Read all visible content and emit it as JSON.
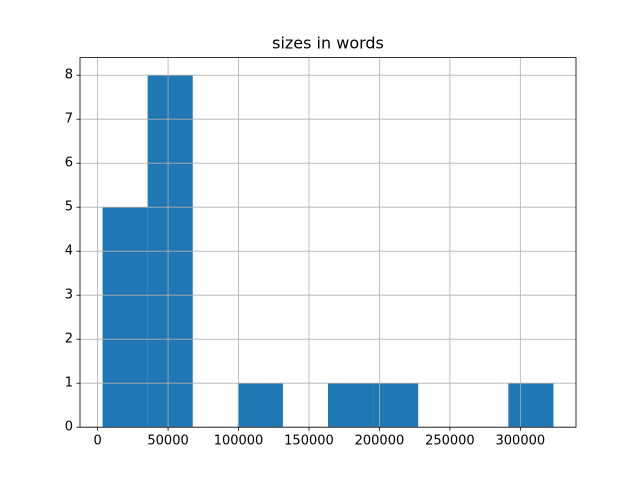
{
  "chart_data": {
    "type": "histogram",
    "title": "sizes in words",
    "bins": [
      3500,
      35500,
      67500,
      99500,
      131500,
      163500,
      195500,
      227500,
      259500,
      291500,
      323500
    ],
    "values": [
      5,
      8,
      0,
      1,
      0,
      1,
      1,
      0,
      0,
      1
    ],
    "color": "#1f77b4",
    "xlim": [
      -12500,
      339500
    ],
    "xticks": [
      0,
      50000,
      100000,
      150000,
      200000,
      250000,
      300000
    ],
    "ylim": [
      0,
      8.4
    ],
    "yticks": [
      0,
      1,
      2,
      3,
      4,
      5,
      6,
      7,
      8
    ],
    "grid": true
  }
}
